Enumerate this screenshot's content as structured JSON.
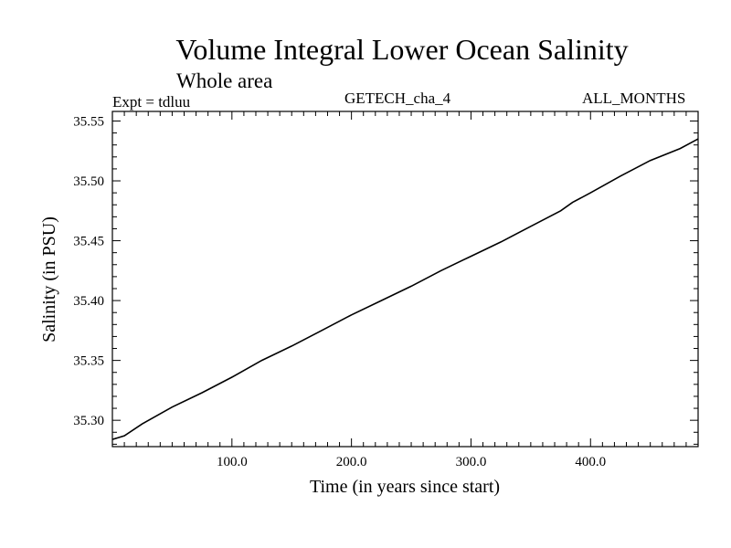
{
  "header": {
    "title": "Volume Integral Lower Ocean Salinity",
    "subtitle": "Whole area",
    "expt": "Expt = tdluu",
    "source": "GETECH_cha_4",
    "months": "ALL_MONTHS"
  },
  "chart_data": {
    "type": "line",
    "title": "Volume Integral Lower Ocean Salinity",
    "subtitle": "Whole area",
    "xlabel": "Time (in years since start)",
    "ylabel": "Salinity (in PSU)",
    "xlim": [
      0,
      490
    ],
    "ylim": [
      35.278,
      35.558
    ],
    "xticks": [
      100.0,
      200.0,
      300.0,
      400.0
    ],
    "xtick_labels": [
      "100.0",
      "200.0",
      "300.0",
      "400.0"
    ],
    "yticks": [
      35.3,
      35.35,
      35.4,
      35.45,
      35.5,
      35.55
    ],
    "ytick_labels": [
      "35.30",
      "35.35",
      "35.40",
      "35.45",
      "35.50",
      "35.55"
    ],
    "grid": false,
    "series": [
      {
        "color": "#000000",
        "x": [
          0,
          10,
          25,
          50,
          75,
          100,
          125,
          150,
          175,
          200,
          225,
          250,
          275,
          300,
          325,
          350,
          375,
          385,
          400,
          425,
          450,
          475,
          490
        ],
        "y": [
          35.284,
          35.287,
          35.297,
          35.311,
          35.323,
          35.336,
          35.35,
          35.362,
          35.375,
          35.388,
          35.4,
          35.412,
          35.425,
          35.437,
          35.449,
          35.462,
          35.475,
          35.482,
          35.49,
          35.504,
          35.517,
          35.527,
          35.535
        ]
      }
    ]
  }
}
